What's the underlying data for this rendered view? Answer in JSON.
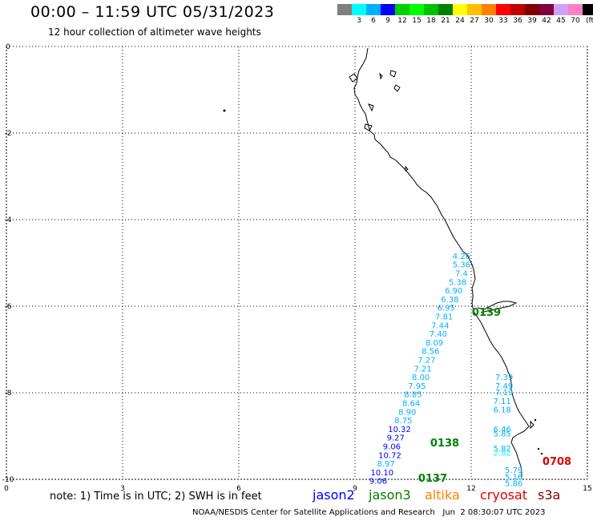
{
  "header": {
    "title": "00:00 – 11:59 UTC 05/31/2023",
    "subtitle": "12 hour collection of altimeter wave heights"
  },
  "colorbar": {
    "unit": "(ft)",
    "swatches": [
      {
        "label": "",
        "color": "#7f7f7f"
      },
      {
        "label": "3",
        "color": "#00ffff"
      },
      {
        "label": "6",
        "color": "#00b0ff"
      },
      {
        "label": "9",
        "color": "#0000ff"
      },
      {
        "label": "12",
        "color": "#00d000"
      },
      {
        "label": "15",
        "color": "#00ff00"
      },
      {
        "label": "18",
        "color": "#00c000"
      },
      {
        "label": "21",
        "color": "#008000"
      },
      {
        "label": "24",
        "color": "#ffff00"
      },
      {
        "label": "27",
        "color": "#ffc000"
      },
      {
        "label": "30",
        "color": "#ff8000"
      },
      {
        "label": "33",
        "color": "#ff0000"
      },
      {
        "label": "36",
        "color": "#c00000"
      },
      {
        "label": "39",
        "color": "#800000"
      },
      {
        "label": "42",
        "color": "#800040"
      },
      {
        "label": "45",
        "color": "#d0a0ff"
      },
      {
        "label": "70",
        "color": "#ff80c0"
      },
      {
        "label": "",
        "color": "#000000"
      }
    ]
  },
  "map": {
    "x_ticks": [
      "0",
      "3",
      "6",
      "9",
      "12",
      "15"
    ],
    "y_ticks": [
      "0",
      "-2",
      "-4",
      "-6",
      "-8",
      "-10"
    ],
    "pass_labels": [
      {
        "text": "0139",
        "color": "#008000"
      },
      {
        "text": "0138",
        "color": "#008000"
      },
      {
        "text": "0137",
        "color": "#008000"
      },
      {
        "text": "0708",
        "color": "#e00000"
      }
    ],
    "swh_track_a": [
      {
        "lon": 11.75,
        "lat": -4.85,
        "value": "4.26",
        "color": "#00b0ff"
      },
      {
        "lon": 11.75,
        "lat": -5.05,
        "value": "5.36",
        "color": "#00b0ff"
      },
      {
        "lon": 11.75,
        "lat": -5.25,
        "value": "7.4",
        "color": "#00b0ff"
      },
      {
        "lon": 11.65,
        "lat": -5.45,
        "value": "5.38",
        "color": "#00b0ff"
      },
      {
        "lon": 11.55,
        "lat": -5.65,
        "value": "6.90",
        "color": "#00b0ff"
      },
      {
        "lon": 11.45,
        "lat": -5.85,
        "value": "6.38",
        "color": "#00b0ff"
      },
      {
        "lon": 11.35,
        "lat": -6.05,
        "value": "6.95",
        "color": "#00b0ff"
      },
      {
        "lon": 11.3,
        "lat": -6.25,
        "value": "7.81",
        "color": "#00b0ff"
      },
      {
        "lon": 11.2,
        "lat": -6.45,
        "value": "7.44",
        "color": "#00b0ff"
      },
      {
        "lon": 11.15,
        "lat": -6.65,
        "value": "7.40",
        "color": "#00b0ff"
      },
      {
        "lon": 11.05,
        "lat": -6.85,
        "value": "8.09",
        "color": "#00b0ff"
      },
      {
        "lon": 10.95,
        "lat": -7.05,
        "value": "8.56",
        "color": "#00b0ff"
      },
      {
        "lon": 10.85,
        "lat": -7.25,
        "value": "7.27",
        "color": "#00b0ff"
      },
      {
        "lon": 10.75,
        "lat": -7.45,
        "value": "7.21",
        "color": "#00b0ff"
      },
      {
        "lon": 10.7,
        "lat": -7.65,
        "value": "8.00",
        "color": "#00b0ff"
      },
      {
        "lon": 10.6,
        "lat": -7.85,
        "value": "7.95",
        "color": "#00b0ff"
      },
      {
        "lon": 10.5,
        "lat": -8.05,
        "value": "8.85",
        "color": "#00b0ff"
      },
      {
        "lon": 10.45,
        "lat": -8.25,
        "value": "8.64",
        "color": "#00b0ff"
      },
      {
        "lon": 10.35,
        "lat": -8.45,
        "value": "8.90",
        "color": "#00b0ff"
      },
      {
        "lon": 10.25,
        "lat": -8.65,
        "value": "8.75",
        "color": "#00b0ff"
      },
      {
        "lon": 10.15,
        "lat": -8.85,
        "value": "10.32",
        "color": "#0000ff"
      },
      {
        "lon": 10.05,
        "lat": -9.05,
        "value": "9.27",
        "color": "#0000ff"
      },
      {
        "lon": 9.95,
        "lat": -9.25,
        "value": "9.06",
        "color": "#0000ff"
      },
      {
        "lon": 9.9,
        "lat": -9.45,
        "value": "10.72",
        "color": "#0000ff"
      },
      {
        "lon": 9.8,
        "lat": -9.65,
        "value": "8.97",
        "color": "#00b0ff"
      },
      {
        "lon": 9.7,
        "lat": -9.85,
        "value": "10.10",
        "color": "#0000ff"
      },
      {
        "lon": 9.6,
        "lat": -10.05,
        "value": "9.06",
        "color": "#0000ff"
      }
    ],
    "swh_track_b": [
      {
        "lon": 12.85,
        "lat": -7.65,
        "value": "7.39",
        "color": "#00b0ff"
      },
      {
        "lon": 12.85,
        "lat": -7.85,
        "value": "7.49",
        "color": "#00b0ff"
      },
      {
        "lon": 12.85,
        "lat": -8.0,
        "value": "7.19",
        "color": "#00b0ff"
      },
      {
        "lon": 12.8,
        "lat": -8.2,
        "value": "7.11",
        "color": "#00b0ff"
      },
      {
        "lon": 12.8,
        "lat": -8.4,
        "value": "6.18",
        "color": "#00b0ff"
      },
      {
        "lon": 12.8,
        "lat": -8.85,
        "value": "6.46",
        "color": "#00b0ff"
      },
      {
        "lon": 12.8,
        "lat": -8.95,
        "value": "5.85",
        "color": "#00b0ff"
      },
      {
        "lon": 12.8,
        "lat": -9.3,
        "value": "5.82",
        "color": "#00b0ff"
      },
      {
        "lon": 12.8,
        "lat": -9.4,
        "value": "2.82",
        "color": "#00ffff"
      },
      {
        "lon": 13.1,
        "lat": -9.8,
        "value": "5.79",
        "color": "#00b0ff"
      },
      {
        "lon": 13.1,
        "lat": -9.95,
        "value": "5.16",
        "color": "#00b0ff"
      },
      {
        "lon": 13.1,
        "lat": -10.1,
        "value": "5.86",
        "color": "#00b0ff"
      }
    ]
  },
  "note": "note: 1) Time is in UTC; 2) SWH is in feet",
  "legend": [
    {
      "label": "jason2",
      "color": "#0000ff"
    },
    {
      "label": "jason3",
      "color": "#008000"
    },
    {
      "label": "altika",
      "color": "#ff8000"
    },
    {
      "label": "cryosat",
      "color": "#e00000"
    },
    {
      "label": "s3a",
      "color": "#800000"
    }
  ],
  "footer": "NOAA/NESDIS Center for Satellite Applications and Research   Jun  2 08:30:07 UTC 2023"
}
